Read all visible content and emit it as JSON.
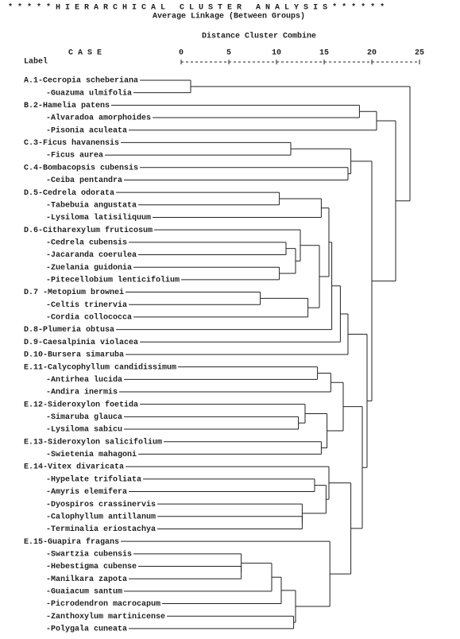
{
  "chart_data": {
    "type": "dendrogram",
    "title": "* * * * * H I E R A R C H I C A L   C L U S T E R   A N A L Y S I S * * * * * *",
    "subtitle": "Average Linkage (Between Groups)",
    "x_label": "Distance Cluster Combine",
    "case_header": "C A S E",
    "label_header": "Label",
    "xlim": [
      0,
      25
    ],
    "xticks": [
      0,
      5,
      10,
      15,
      20,
      25
    ],
    "labels": [
      "A.1-Cecropia scheberiana",
      "-Guazuma ulmifolia",
      "B.2-Hamelia patens",
      "-Alvaradoa amorphoides",
      "-Pisonia aculeata",
      "C.3-Ficus havanensis",
      "-Ficus aurea",
      "C.4-Bombacopsis cubensis",
      "-Ceiba pentandra",
      "D.5-Cedrela odorata",
      "-Tabebuia angustata",
      "-Lysiloma latisiliquum",
      "D.6-Citharexylum fruticosum",
      "-Cedrela cubensis",
      "-Jacaranda coerulea",
      "-Zuelania guidonia",
      "-Pitecellobium lenticifolium",
      "D.7 -Metopium brownei",
      "-Celtis trinervia",
      "-Cordia collococca",
      "D.8-Plumeria obtusa",
      "D.9-Caesalpinia violacea",
      "D.10-Bursera simaruba",
      "E.11-Calycophyllum candidissimum",
      "-Antirhea lucida",
      "-Andira inermis",
      "E.12-Sideroxylon foetida",
      "-Simaruba glauca",
      "-Lysiloma sabicu",
      "E.13-Sideroxylon salicifolium",
      "-Swietenia mahagoni",
      "E.14-Vitex divaricata",
      "-Hypelate trifoliata",
      "-Amyris elemifera",
      "-Dyospiros crassinervis",
      "-Calophyllum antillanum",
      "-Terminalia eriostachya",
      "E.15-Guapira fragans",
      "-Swartzia cubensis",
      "-Hebestigma cubense",
      "-Manilkara zapota",
      "-Guaiacum santum",
      "-Picrodendron macrocapum",
      "-Zanthoxylum martinicense",
      "-Polygala cuneata"
    ],
    "tree": {
      "height": 24,
      "children": [
        {
          "height": 1,
          "children": [
            0,
            1
          ]
        },
        {
          "height": 22.5,
          "children": [
            {
              "height": 20.5,
              "children": [
                {
                  "height": 18.7,
                  "children": [
                    2,
                    3
                  ]
                },
                4
              ]
            },
            {
              "height": 20,
              "children": [
                {
                  "height": 17.8,
                  "children": [
                    {
                      "height": 11.5,
                      "children": [
                        5,
                        6
                      ]
                    },
                    {
                      "height": 17.5,
                      "children": [
                        7,
                        8
                      ]
                    }
                  ]
                },
                {
                  "height": 19.5,
                  "children": [
                    {
                      "height": 17.5,
                      "children": [
                        {
                          "height": 16.7,
                          "children": [
                            {
                              "height": 15.8,
                              "children": [
                                {
                                  "height": 15.5,
                                  "children": [
                                    {
                                      "height": 14.7,
                                      "children": [
                                        {
                                          "height": 10.3,
                                          "children": [
                                            9,
                                            10
                                          ]
                                        },
                                        11
                                      ]
                                    },
                                    {
                                      "height": 14.5,
                                      "children": [
                                        {
                                          "height": 12.5,
                                          "children": [
                                            12,
                                            {
                                              "height": 12,
                                              "children": [
                                                {
                                                  "height": 11,
                                                  "children": [
                                                    13,
                                                    14
                                                  ]
                                                },
                                                {
                                                  "height": 10.3,
                                                  "children": [
                                                    15,
                                                    16
                                                  ]
                                                }
                                              ]
                                            }
                                          ]
                                        },
                                        {
                                          "height": 13.3,
                                          "children": [
                                            {
                                              "height": 8.3,
                                              "children": [
                                                17,
                                                18
                                              ]
                                            },
                                            19
                                          ]
                                        }
                                      ]
                                    }
                                  ]
                                },
                                20
                              ]
                            },
                            21
                          ]
                        },
                        22
                      ]
                    },
                    {
                      "height": 19,
                      "children": [
                        {
                          "height": 17,
                          "children": [
                            {
                              "height": 15.7,
                              "children": [
                                {
                                  "height": 14.3,
                                  "children": [
                                    23,
                                    24
                                  ]
                                },
                                25
                              ]
                            },
                            {
                              "height": 15.3,
                              "children": [
                                {
                                  "height": 13,
                                  "children": [
                                    26,
                                    {
                                      "height": 12.3,
                                      "children": [
                                        27,
                                        28
                                      ]
                                    }
                                  ]
                                },
                                {
                                  "height": 14.7,
                                  "children": [
                                    29,
                                    30
                                  ]
                                }
                              ]
                            }
                          ]
                        },
                        {
                          "height": 17.8,
                          "children": [
                            {
                              "height": 15.5,
                              "children": [
                                31,
                                {
                                  "height": 15.2,
                                  "children": [
                                    {
                                      "height": 14,
                                      "children": [
                                        32,
                                        33
                                      ]
                                    },
                                    {
                                      "height": 12.7,
                                      "children": [
                                        34,
                                        {
                                          "height": 12.7,
                                          "children": [
                                            35,
                                            36
                                          ]
                                        }
                                      ]
                                    }
                                  ]
                                }
                              ]
                            },
                            {
                              "height": 15.6,
                              "children": [
                                37,
                                {
                                  "height": 12,
                                  "children": [
                                    {
                                      "height": 10.5,
                                      "children": [
                                        {
                                          "height": 9.5,
                                          "children": [
                                            {
                                              "height": 6.3,
                                              "children": [
                                                38,
                                                {
                                                  "height": 6.3,
                                                  "children": [
                                                    39,
                                                    40
                                                  ]
                                                }
                                              ]
                                            },
                                            41
                                          ]
                                        },
                                        42
                                      ]
                                    },
                                    {
                                      "height": 11.8,
                                      "children": [
                                        43,
                                        44
                                      ]
                                    }
                                  ]
                                }
                              ]
                            }
                          ]
                        }
                      ]
                    }
                  ]
                }
              ]
            }
          ]
        }
      ]
    }
  }
}
